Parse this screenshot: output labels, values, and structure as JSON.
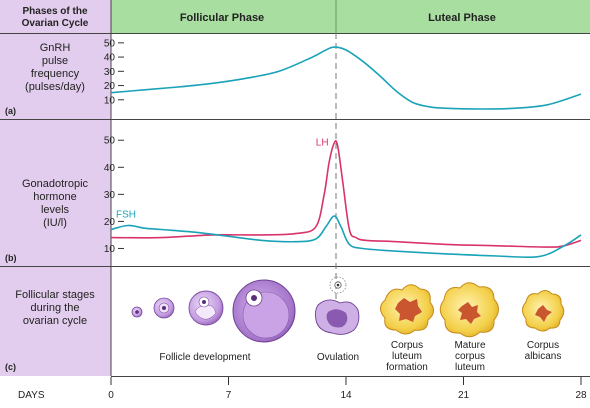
{
  "header": {
    "corner_title": [
      "Phases of the",
      "Ovarian Cycle"
    ],
    "phases": [
      "Follicular Phase",
      "Luteal Phase"
    ]
  },
  "panels": [
    {
      "tag": "(a)",
      "label_lines": [
        "GnRH",
        "pulse",
        "frequency",
        "(pulses/day)"
      ]
    },
    {
      "tag": "(b)",
      "label_lines": [
        "Gonadotropic",
        "hormone",
        "levels",
        "(IU/l)"
      ]
    },
    {
      "tag": "(c)",
      "label_lines": [
        "Follicular stages",
        "during the",
        "ovarian cycle"
      ],
      "stage_captions": [
        {
          "key": "development",
          "lines": [
            "Follicle development"
          ]
        },
        {
          "key": "ovulation",
          "lines": [
            "Ovulation"
          ]
        },
        {
          "key": "cl-formation",
          "lines": [
            "Corpus",
            "luteum",
            "formation"
          ]
        },
        {
          "key": "mature-cl",
          "lines": [
            "Mature",
            "corpus",
            "luteum"
          ]
        },
        {
          "key": "albicans",
          "lines": [
            "Corpus",
            "albicans"
          ]
        }
      ]
    }
  ],
  "days_axis": {
    "label": "DAYS",
    "ticks": [
      "0",
      "7",
      "14",
      "21",
      "28"
    ]
  },
  "colors": {
    "header_green": "#a8dfa0",
    "label_lavender": "#e3cdee",
    "gnrh_line": "#1aa3b8",
    "lh_line": "#d8336c",
    "fsh_line": "#1aa3b8",
    "follicle_purple": "#b98ad6",
    "corpus_yellow": "#f1cc45"
  },
  "chart_data": [
    {
      "type": "line",
      "panel": "a",
      "ylabel": "GnRH pulse frequency (pulses/day)",
      "x_unit": "days",
      "xlim": [
        0,
        28
      ],
      "yticks": [
        10,
        20,
        30,
        40,
        50
      ],
      "ylim": [
        0,
        52
      ],
      "series": [
        {
          "name": "",
          "x": [
            0,
            2,
            4,
            6,
            8,
            10,
            12,
            12.8,
            13.3,
            14,
            15,
            16,
            17,
            18,
            19,
            20,
            22,
            24,
            26,
            28
          ],
          "y": [
            15,
            17,
            19,
            21.5,
            25,
            30,
            40,
            45,
            47,
            45,
            37,
            27,
            16,
            8,
            5,
            4,
            3.5,
            4,
            6.5,
            14
          ]
        }
      ]
    },
    {
      "type": "line",
      "panel": "b",
      "ylabel": "Gonadotropic hormone levels (IU/l)",
      "x_unit": "days",
      "xlim": [
        0,
        28
      ],
      "yticks": [
        10,
        20,
        30,
        40,
        50
      ],
      "ylim": [
        5,
        56
      ],
      "series": [
        {
          "name": "LH",
          "x": [
            0,
            3,
            6,
            9,
            11,
            12.2,
            12.7,
            13,
            13.3,
            13.5,
            13.8,
            14.2,
            14.6,
            15.2,
            17,
            20,
            23,
            26,
            27,
            28
          ],
          "y": [
            14,
            14,
            15,
            15,
            15.5,
            18,
            30,
            42,
            49,
            48,
            35,
            17,
            14,
            13,
            12.5,
            11.5,
            11,
            10.5,
            11,
            13
          ]
        },
        {
          "name": "FSH",
          "x": [
            0,
            1,
            2,
            3,
            5,
            7,
            9,
            11,
            12.2,
            12.8,
            13.3,
            13.7,
            14.2,
            15,
            17,
            20,
            23,
            25.5,
            27,
            28
          ],
          "y": [
            17,
            18.5,
            17.5,
            17,
            16,
            14.5,
            13,
            12.5,
            13.5,
            18,
            22,
            18,
            11.5,
            10,
            9,
            8,
            7.2,
            7,
            11,
            15
          ]
        }
      ]
    }
  ]
}
